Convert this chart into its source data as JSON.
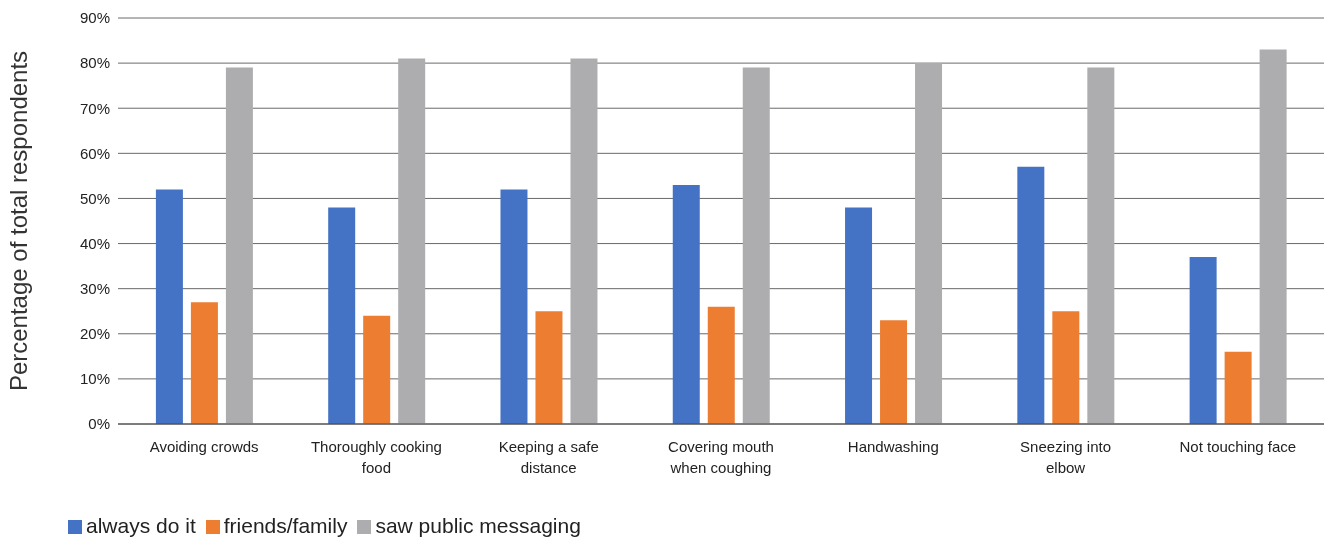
{
  "chart_data": {
    "type": "bar",
    "ylabel": "Percentage of total respondents",
    "categories": [
      "Avoiding crowds",
      "Thoroughly cooking food",
      "Keeping a safe distance",
      "Covering mouth when coughing",
      "Handwashing",
      "Sneezing into elbow",
      "Not touching face"
    ],
    "series": [
      {
        "name": "always do it",
        "color": "#4472c4",
        "values": [
          52,
          48,
          52,
          53,
          48,
          57,
          37
        ]
      },
      {
        "name": "friends/family",
        "color": "#ed7d31",
        "values": [
          27,
          24,
          25,
          26,
          23,
          25,
          16
        ]
      },
      {
        "name": "saw public messaging",
        "color": "#adadb0",
        "values": [
          79,
          81,
          81,
          79,
          80,
          79,
          83
        ]
      }
    ],
    "ylim": [
      0,
      90
    ],
    "yticks": [
      {
        "value": 0,
        "label": "0%"
      },
      {
        "value": 10,
        "label": "10%"
      },
      {
        "value": 20,
        "label": "20%"
      },
      {
        "value": 30,
        "label": "30%"
      },
      {
        "value": 40,
        "label": "40%"
      },
      {
        "value": 50,
        "label": "50%"
      },
      {
        "value": 60,
        "label": "60%"
      },
      {
        "value": 70,
        "label": "70%"
      },
      {
        "value": 80,
        "label": "80%"
      },
      {
        "value": 90,
        "label": "90%"
      }
    ],
    "grid": "y",
    "legend": "bottom left"
  }
}
